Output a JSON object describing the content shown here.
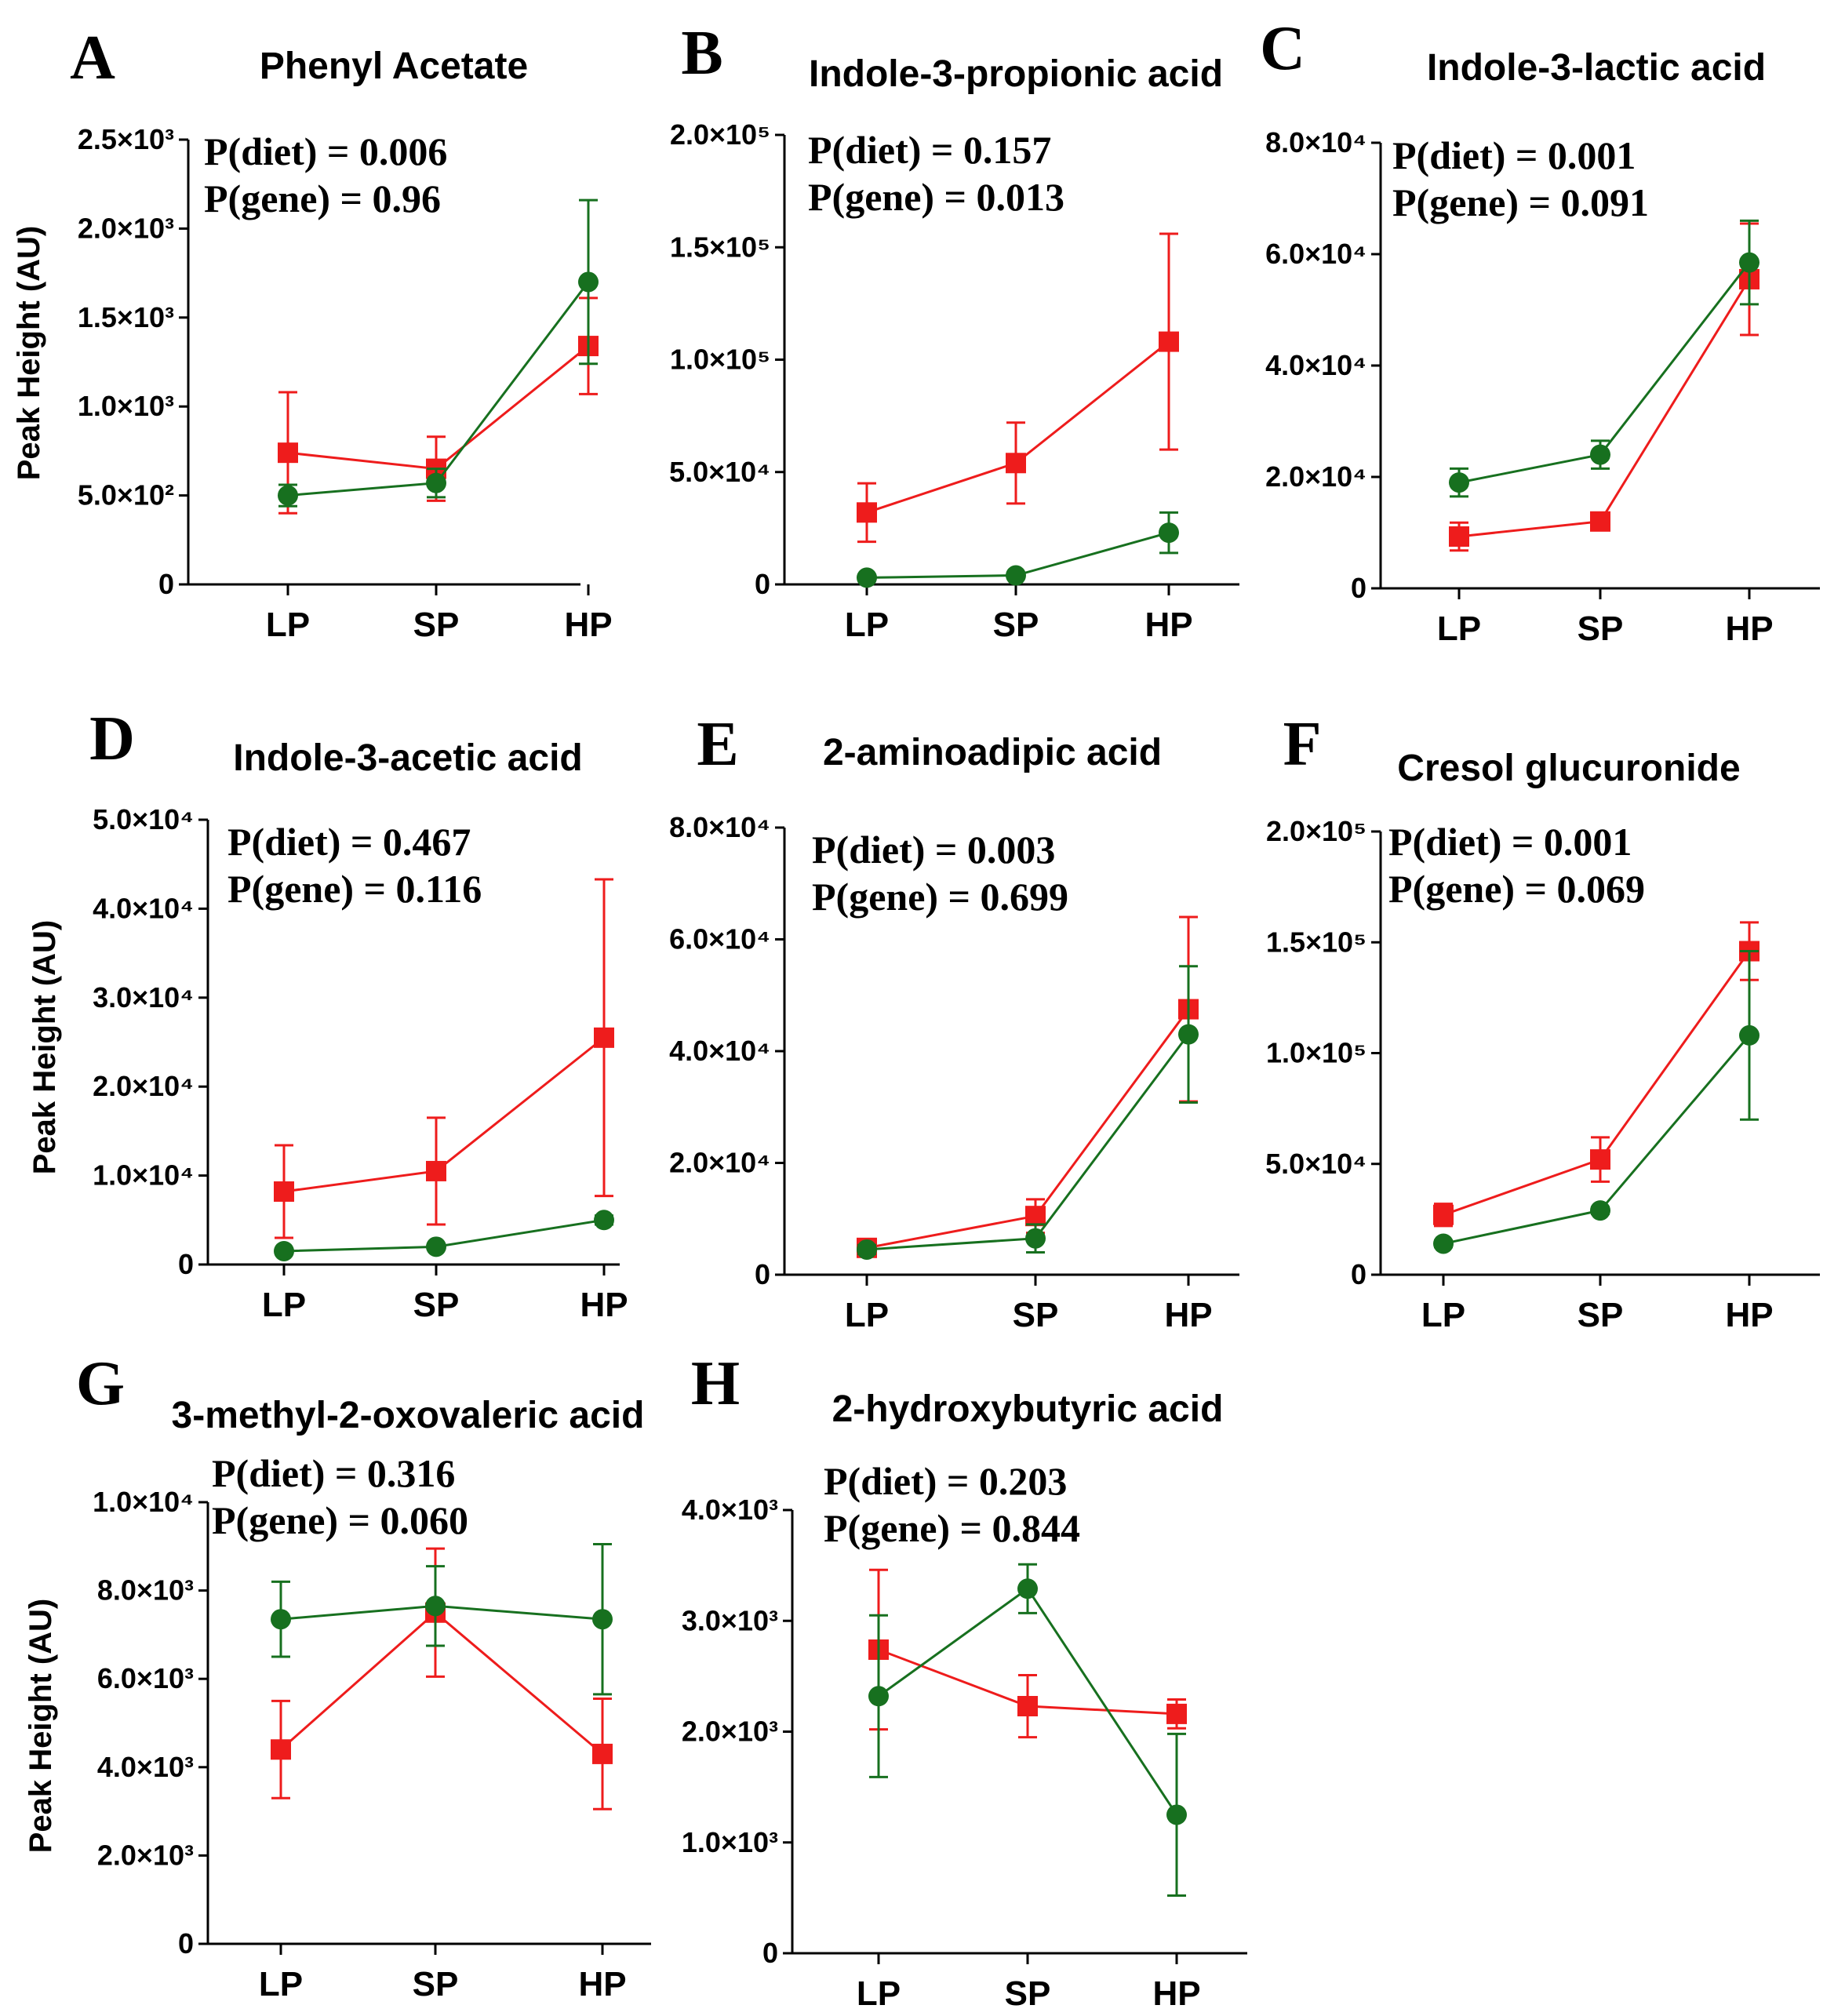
{
  "colors": {
    "series_red": "#ee1c1c",
    "series_green": "#17701f"
  },
  "chart_data": [
    {
      "panel": "A",
      "type": "line",
      "title": "Phenyl Acetate",
      "ylabel": "Peak Height (AU)",
      "categories": [
        "LP",
        "SP",
        "HP"
      ],
      "ylim": [
        0,
        2500
      ],
      "yticks": [
        {
          "v": 0,
          "t": "0"
        },
        {
          "v": 500,
          "t": "5.0×10²"
        },
        {
          "v": 1000,
          "t": "1.0×10³"
        },
        {
          "v": 1500,
          "t": "1.5×10³"
        },
        {
          "v": 2000,
          "t": "2.0×10³"
        },
        {
          "v": 2500,
          "t": "2.5×10³"
        }
      ],
      "p_diet": "P(diet) = 0.006",
      "p_gene": "P(gene) = 0.96",
      "series": [
        {
          "name": "red",
          "marker": "square",
          "values": [
            740,
            650,
            1340
          ],
          "err": [
            340,
            180,
            270
          ]
        },
        {
          "name": "green",
          "marker": "circle",
          "values": [
            500,
            570,
            1700
          ],
          "err": [
            60,
            80,
            460
          ]
        }
      ]
    },
    {
      "panel": "B",
      "type": "line",
      "title": "Indole-3-propionic acid",
      "ylabel": "",
      "categories": [
        "LP",
        "SP",
        "HP"
      ],
      "ylim": [
        0,
        200000
      ],
      "yticks": [
        {
          "v": 0,
          "t": "0"
        },
        {
          "v": 50000,
          "t": "5.0×10⁴"
        },
        {
          "v": 100000,
          "t": "1.0×10⁵"
        },
        {
          "v": 150000,
          "t": "1.5×10⁵"
        },
        {
          "v": 200000,
          "t": "2.0×10⁵"
        }
      ],
      "p_diet": "P(diet) = 0.157",
      "p_gene": "P(gene) = 0.013",
      "series": [
        {
          "name": "red",
          "marker": "square",
          "values": [
            32000,
            54000,
            108000
          ],
          "err": [
            13000,
            18000,
            48000
          ]
        },
        {
          "name": "green",
          "marker": "circle",
          "values": [
            3000,
            4000,
            23000
          ],
          "err": [
            1000,
            1000,
            9000
          ]
        }
      ]
    },
    {
      "panel": "C",
      "type": "line",
      "title": "Indole-3-lactic acid",
      "ylabel": "",
      "categories": [
        "LP",
        "SP",
        "HP"
      ],
      "ylim": [
        0,
        80000
      ],
      "yticks": [
        {
          "v": 0,
          "t": "0"
        },
        {
          "v": 20000,
          "t": "2.0×10⁴"
        },
        {
          "v": 40000,
          "t": "4.0×10⁴"
        },
        {
          "v": 60000,
          "t": "6.0×10⁴"
        },
        {
          "v": 80000,
          "t": "8.0×10⁴"
        }
      ],
      "p_diet": "P(diet) = 0.001",
      "p_gene": "P(gene) = 0.091",
      "series": [
        {
          "name": "red",
          "marker": "square",
          "values": [
            9300,
            12000,
            55500
          ],
          "err": [
            2500,
            500,
            10000
          ]
        },
        {
          "name": "green",
          "marker": "circle",
          "values": [
            19000,
            24000,
            58500
          ],
          "err": [
            2500,
            2500,
            7500
          ]
        }
      ]
    },
    {
      "panel": "D",
      "type": "line",
      "title": "Indole-3-acetic acid",
      "ylabel": "Peak Height (AU)",
      "categories": [
        "LP",
        "SP",
        "HP"
      ],
      "ylim": [
        0,
        50000
      ],
      "yticks": [
        {
          "v": 0,
          "t": "0"
        },
        {
          "v": 10000,
          "t": "1.0×10⁴"
        },
        {
          "v": 20000,
          "t": "2.0×10⁴"
        },
        {
          "v": 30000,
          "t": "3.0×10⁴"
        },
        {
          "v": 40000,
          "t": "4.0×10⁴"
        },
        {
          "v": 50000,
          "t": "5.0×10⁴"
        }
      ],
      "p_diet": "P(diet) = 0.467",
      "p_gene": "P(gene) = 0.116",
      "series": [
        {
          "name": "red",
          "marker": "square",
          "values": [
            8200,
            10500,
            25500
          ],
          "err": [
            5200,
            6000,
            17800
          ]
        },
        {
          "name": "green",
          "marker": "circle",
          "values": [
            1500,
            2000,
            5000
          ],
          "err": [
            300,
            300,
            500
          ]
        }
      ]
    },
    {
      "panel": "E",
      "type": "line",
      "title": "2-aminoadipic acid",
      "ylabel": "",
      "categories": [
        "LP",
        "SP",
        "HP"
      ],
      "ylim": [
        0,
        80000
      ],
      "yticks": [
        {
          "v": 0,
          "t": "0"
        },
        {
          "v": 20000,
          "t": "2.0×10⁴"
        },
        {
          "v": 40000,
          "t": "4.0×10⁴"
        },
        {
          "v": 60000,
          "t": "6.0×10⁴"
        },
        {
          "v": 80000,
          "t": "8.0×10⁴"
        }
      ],
      "p_diet": "P(diet) = 0.003",
      "p_gene": "P(gene) = 0.699",
      "series": [
        {
          "name": "red",
          "marker": "square",
          "values": [
            4800,
            10500,
            47500
          ],
          "err": [
            800,
            3000,
            16500
          ]
        },
        {
          "name": "green",
          "marker": "circle",
          "values": [
            4500,
            6500,
            43000
          ],
          "err": [
            800,
            2500,
            12200
          ]
        }
      ]
    },
    {
      "panel": "F",
      "type": "line",
      "title": "Cresol glucuronide",
      "ylabel": "",
      "categories": [
        "LP",
        "SP",
        "HP"
      ],
      "ylim": [
        0,
        200000
      ],
      "yticks": [
        {
          "v": 0,
          "t": "0"
        },
        {
          "v": 50000,
          "t": "5.0×10⁴"
        },
        {
          "v": 100000,
          "t": "1.0×10⁵"
        },
        {
          "v": 150000,
          "t": "1.5×10⁵"
        },
        {
          "v": 200000,
          "t": "2.0×10⁵"
        }
      ],
      "p_diet": "P(diet) = 0.001",
      "p_gene": "P(gene) = 0.069",
      "series": [
        {
          "name": "red",
          "marker": "square",
          "values": [
            27000,
            52000,
            146000
          ],
          "err": [
            5000,
            10000,
            13000
          ]
        },
        {
          "name": "green",
          "marker": "circle",
          "values": [
            14000,
            29000,
            108000
          ],
          "err": [
            1500,
            1500,
            38000
          ]
        }
      ]
    },
    {
      "panel": "G",
      "type": "line",
      "title": "3-methyl-2-oxovaleric acid",
      "ylabel": "Peak Height (AU)",
      "categories": [
        "LP",
        "SP",
        "HP"
      ],
      "ylim": [
        0,
        10000
      ],
      "yticks": [
        {
          "v": 0,
          "t": "0"
        },
        {
          "v": 2000,
          "t": "2.0×10³"
        },
        {
          "v": 4000,
          "t": "4.0×10³"
        },
        {
          "v": 6000,
          "t": "6.0×10³"
        },
        {
          "v": 8000,
          "t": "8.0×10³"
        },
        {
          "v": 10000,
          "t": "1.0×10⁴"
        }
      ],
      "p_diet": "P(diet) = 0.316",
      "p_gene": "P(gene) = 0.060",
      "series": [
        {
          "name": "red",
          "marker": "square",
          "values": [
            4400,
            7500,
            4300
          ],
          "err": [
            1100,
            1450,
            1250
          ]
        },
        {
          "name": "green",
          "marker": "circle",
          "values": [
            7350,
            7650,
            7350
          ],
          "err": [
            850,
            900,
            1700
          ]
        }
      ]
    },
    {
      "panel": "H",
      "type": "line",
      "title": "2-hydroxybutyric acid",
      "ylabel": "",
      "categories": [
        "LP",
        "SP",
        "HP"
      ],
      "ylim": [
        0,
        4000
      ],
      "yticks": [
        {
          "v": 0,
          "t": "0"
        },
        {
          "v": 1000,
          "t": "1.0×10³"
        },
        {
          "v": 2000,
          "t": "2.0×10³"
        },
        {
          "v": 3000,
          "t": "3.0×10³"
        },
        {
          "v": 4000,
          "t": "4.0×10³"
        }
      ],
      "p_diet": "P(diet) = 0.203",
      "p_gene": "P(gene) = 0.844",
      "series": [
        {
          "name": "red",
          "marker": "square",
          "values": [
            2740,
            2230,
            2160
          ],
          "err": [
            720,
            280,
            130
          ]
        },
        {
          "name": "green",
          "marker": "circle",
          "values": [
            2320,
            3290,
            1250
          ],
          "err": [
            730,
            220,
            730
          ]
        }
      ]
    }
  ]
}
